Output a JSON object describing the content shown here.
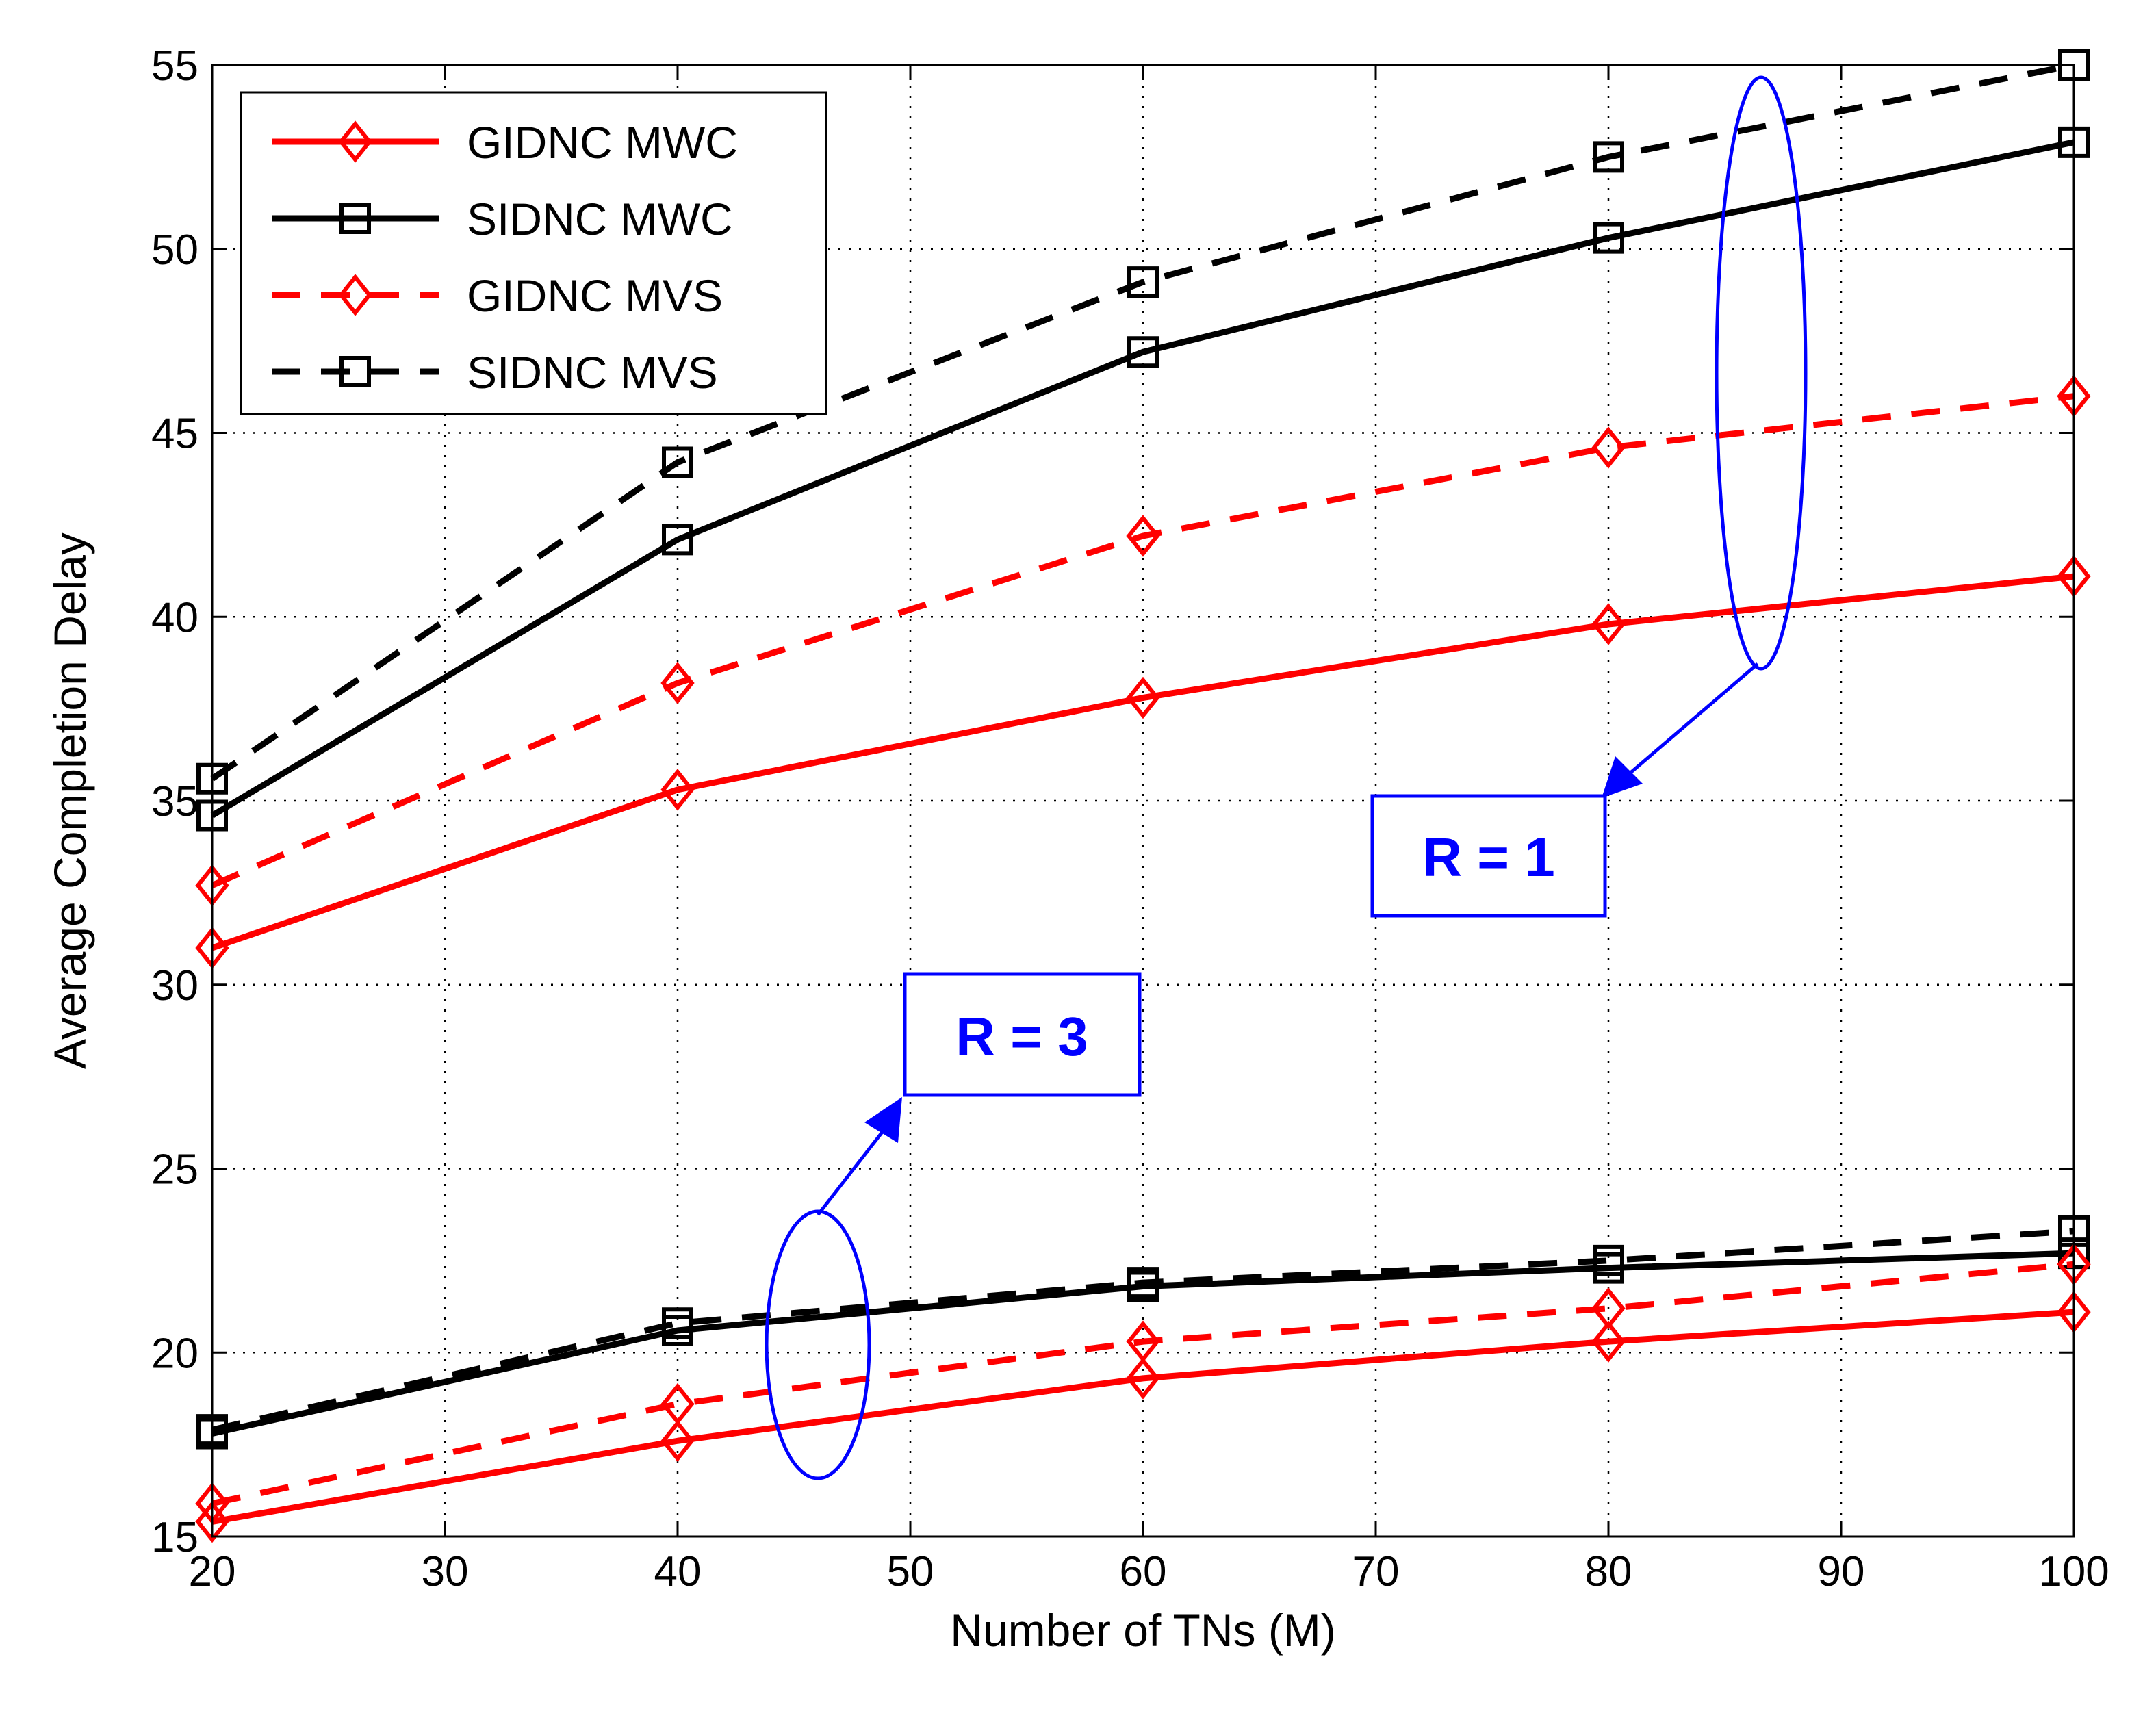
{
  "chart_data": {
    "type": "line",
    "title": "",
    "xlabel": "Number of TNs (M)",
    "ylabel": "Average Completion Delay",
    "xlim": [
      20,
      100
    ],
    "ylim": [
      15,
      55
    ],
    "xticks": [
      20,
      30,
      40,
      50,
      60,
      70,
      80,
      90,
      100
    ],
    "yticks": [
      15,
      20,
      25,
      30,
      35,
      40,
      45,
      50,
      55
    ],
    "grid": true,
    "legend_position": "top-left",
    "x": [
      20,
      40,
      60,
      80,
      100
    ],
    "series": [
      {
        "name": "GIDNC MWC",
        "color": "#ff0000",
        "dash": "solid",
        "marker": "diamond",
        "values_R1": [
          31.0,
          35.3,
          37.8,
          39.8,
          41.1
        ],
        "values_R3": [
          15.4,
          17.6,
          19.3,
          20.3,
          21.1
        ]
      },
      {
        "name": "SIDNC MWC",
        "color": "#000000",
        "dash": "solid",
        "marker": "square",
        "values_R1": [
          34.6,
          42.1,
          47.2,
          50.3,
          52.9
        ],
        "values_R3": [
          17.8,
          20.6,
          21.8,
          22.3,
          22.7
        ]
      },
      {
        "name": "GIDNC MVS",
        "color": "#ff0000",
        "dash": "dashed",
        "marker": "diamond",
        "values_R1": [
          32.7,
          38.2,
          42.2,
          44.6,
          46.0
        ],
        "values_R3": [
          15.9,
          18.6,
          20.3,
          21.2,
          22.4
        ]
      },
      {
        "name": "SIDNC MVS",
        "color": "#000000",
        "dash": "dashed",
        "marker": "square",
        "values_R1": [
          35.6,
          44.2,
          49.1,
          52.5,
          55.0
        ],
        "values_R3": [
          17.9,
          20.8,
          21.9,
          22.5,
          23.3
        ]
      }
    ],
    "annotations": [
      {
        "text": "R = 1",
        "color": "#0000ff"
      },
      {
        "text": "R = 3",
        "color": "#0000ff"
      }
    ]
  }
}
